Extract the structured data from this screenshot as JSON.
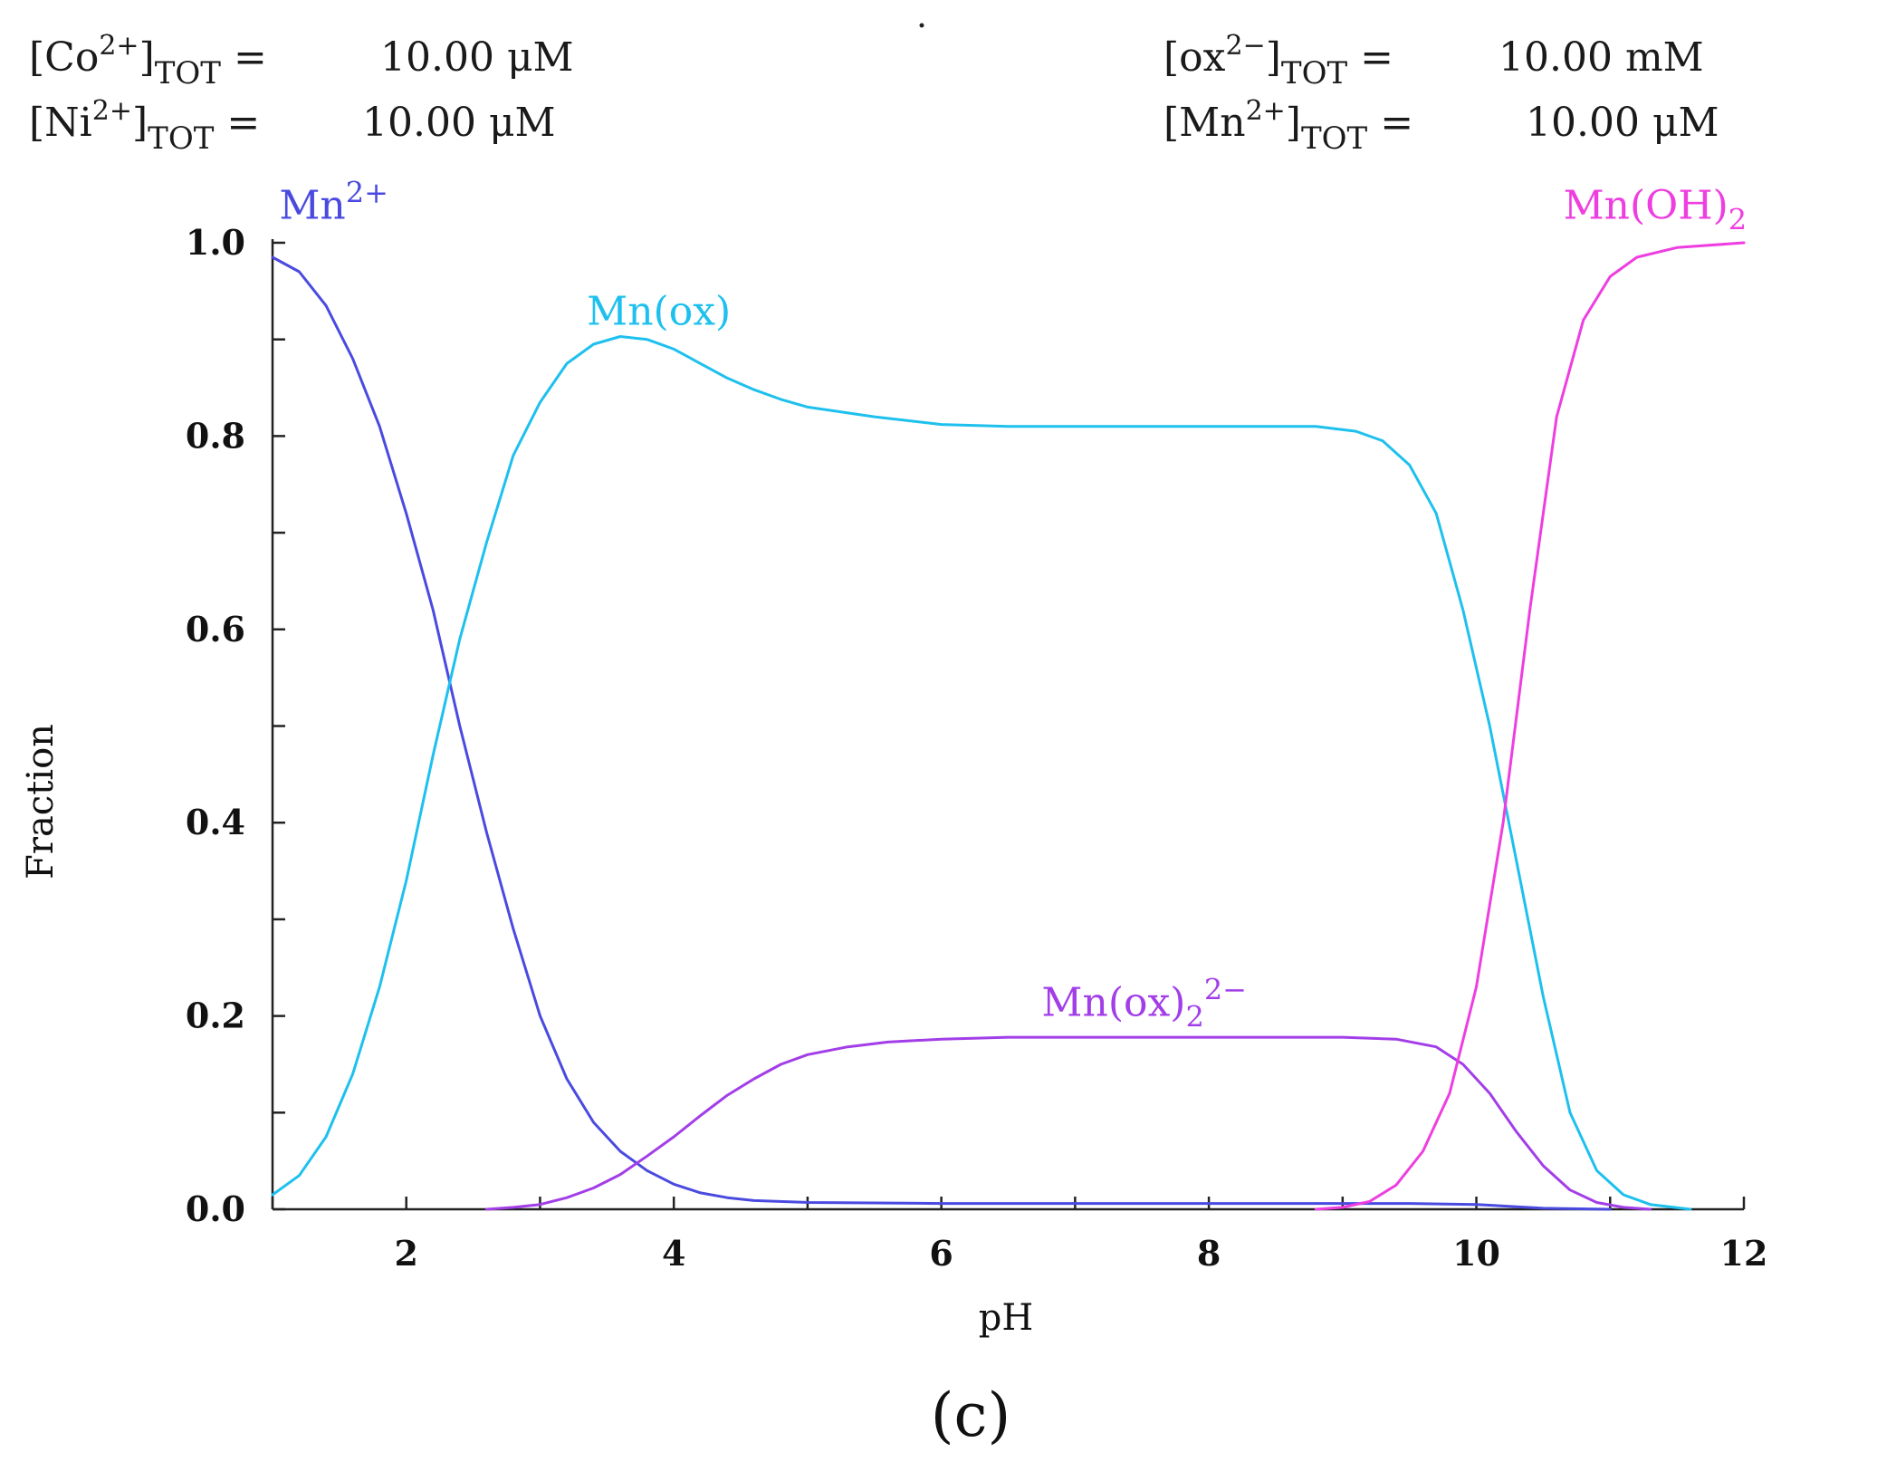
{
  "parameters": {
    "co": {
      "species": "Co",
      "charge": "2+",
      "subscript": "TOT",
      "value": "10.00 μM"
    },
    "ni": {
      "species": "Ni",
      "charge": "2+",
      "subscript": "TOT",
      "value": "10.00 μM"
    },
    "ox": {
      "species": "ox",
      "charge": "2−",
      "subscript": "TOT",
      "value": "10.00 mM"
    },
    "mn": {
      "species": "Mn",
      "charge": "2+",
      "subscript": "TOT",
      "value": "10.00 μM"
    }
  },
  "caption": "(c)",
  "chart_data": {
    "type": "line",
    "title": "",
    "xlabel": "pH",
    "ylabel": "Fraction",
    "xlim": [
      1,
      12
    ],
    "ylim": [
      0,
      1
    ],
    "xticks": [
      2,
      4,
      6,
      8,
      10,
      12
    ],
    "yticks": [
      0.0,
      0.2,
      0.4,
      0.6,
      0.8,
      1.0
    ],
    "ytick_labels": [
      "0.0",
      "0.2",
      "0.4",
      "0.6",
      "0.8",
      "1.0"
    ],
    "grid": false,
    "series": [
      {
        "name": "Mn2+",
        "label_main": "Mn",
        "label_sup": "2+",
        "label_sub": "",
        "color": "#4a4ae0",
        "points": [
          [
            1.0,
            0.985
          ],
          [
            1.2,
            0.97
          ],
          [
            1.4,
            0.935
          ],
          [
            1.6,
            0.88
          ],
          [
            1.8,
            0.81
          ],
          [
            2.0,
            0.72
          ],
          [
            2.2,
            0.62
          ],
          [
            2.4,
            0.5
          ],
          [
            2.6,
            0.39
          ],
          [
            2.8,
            0.29
          ],
          [
            3.0,
            0.2
          ],
          [
            3.2,
            0.135
          ],
          [
            3.4,
            0.09
          ],
          [
            3.6,
            0.06
          ],
          [
            3.8,
            0.04
          ],
          [
            4.0,
            0.026
          ],
          [
            4.2,
            0.017
          ],
          [
            4.4,
            0.012
          ],
          [
            4.6,
            0.009
          ],
          [
            5.0,
            0.007
          ],
          [
            6.0,
            0.006
          ],
          [
            8.0,
            0.006
          ],
          [
            9.5,
            0.006
          ],
          [
            10.0,
            0.005
          ],
          [
            10.5,
            0.001
          ],
          [
            11.0,
            0.0
          ]
        ]
      },
      {
        "name": "Mn(ox)",
        "label_main": "Mn(ox)",
        "label_sup": "",
        "label_sub": "",
        "color": "#1ec0ee",
        "points": [
          [
            1.0,
            0.015
          ],
          [
            1.2,
            0.035
          ],
          [
            1.4,
            0.075
          ],
          [
            1.6,
            0.14
          ],
          [
            1.8,
            0.23
          ],
          [
            2.0,
            0.34
          ],
          [
            2.2,
            0.47
          ],
          [
            2.4,
            0.59
          ],
          [
            2.6,
            0.69
          ],
          [
            2.8,
            0.78
          ],
          [
            3.0,
            0.835
          ],
          [
            3.2,
            0.875
          ],
          [
            3.4,
            0.895
          ],
          [
            3.6,
            0.903
          ],
          [
            3.8,
            0.9
          ],
          [
            4.0,
            0.89
          ],
          [
            4.2,
            0.875
          ],
          [
            4.4,
            0.86
          ],
          [
            4.6,
            0.848
          ],
          [
            4.8,
            0.838
          ],
          [
            5.0,
            0.83
          ],
          [
            5.5,
            0.82
          ],
          [
            6.0,
            0.812
          ],
          [
            6.5,
            0.81
          ],
          [
            7.0,
            0.81
          ],
          [
            8.0,
            0.81
          ],
          [
            8.8,
            0.81
          ],
          [
            9.1,
            0.805
          ],
          [
            9.3,
            0.795
          ],
          [
            9.5,
            0.77
          ],
          [
            9.7,
            0.72
          ],
          [
            9.9,
            0.62
          ],
          [
            10.1,
            0.5
          ],
          [
            10.3,
            0.36
          ],
          [
            10.5,
            0.22
          ],
          [
            10.7,
            0.1
          ],
          [
            10.9,
            0.04
          ],
          [
            11.1,
            0.015
          ],
          [
            11.3,
            0.005
          ],
          [
            11.6,
            0.0
          ]
        ]
      },
      {
        "name": "Mn(ox)2 2-",
        "label_main": "Mn(ox)",
        "label_sup": "2−",
        "label_sub": "2",
        "color": "#a23ee8",
        "points": [
          [
            2.6,
            0.0
          ],
          [
            2.8,
            0.002
          ],
          [
            3.0,
            0.005
          ],
          [
            3.2,
            0.012
          ],
          [
            3.4,
            0.022
          ],
          [
            3.6,
            0.036
          ],
          [
            3.8,
            0.055
          ],
          [
            4.0,
            0.075
          ],
          [
            4.2,
            0.097
          ],
          [
            4.4,
            0.118
          ],
          [
            4.6,
            0.135
          ],
          [
            4.8,
            0.15
          ],
          [
            5.0,
            0.16
          ],
          [
            5.3,
            0.168
          ],
          [
            5.6,
            0.173
          ],
          [
            6.0,
            0.176
          ],
          [
            6.5,
            0.178
          ],
          [
            7.0,
            0.178
          ],
          [
            8.0,
            0.178
          ],
          [
            9.0,
            0.178
          ],
          [
            9.4,
            0.176
          ],
          [
            9.7,
            0.168
          ],
          [
            9.9,
            0.15
          ],
          [
            10.1,
            0.12
          ],
          [
            10.3,
            0.08
          ],
          [
            10.5,
            0.045
          ],
          [
            10.7,
            0.02
          ],
          [
            10.9,
            0.007
          ],
          [
            11.1,
            0.002
          ],
          [
            11.3,
            0.0
          ]
        ]
      },
      {
        "name": "Mn(OH)2",
        "label_main": "Mn(OH)",
        "label_sup": "",
        "label_sub": "2",
        "color": "#ee3ee0",
        "points": [
          [
            8.8,
            0.0
          ],
          [
            9.0,
            0.002
          ],
          [
            9.2,
            0.008
          ],
          [
            9.4,
            0.025
          ],
          [
            9.6,
            0.06
          ],
          [
            9.8,
            0.12
          ],
          [
            10.0,
            0.23
          ],
          [
            10.2,
            0.4
          ],
          [
            10.4,
            0.62
          ],
          [
            10.6,
            0.82
          ],
          [
            10.8,
            0.92
          ],
          [
            11.0,
            0.965
          ],
          [
            11.2,
            0.985
          ],
          [
            11.5,
            0.995
          ],
          [
            12.0,
            1.0
          ]
        ]
      }
    ]
  }
}
